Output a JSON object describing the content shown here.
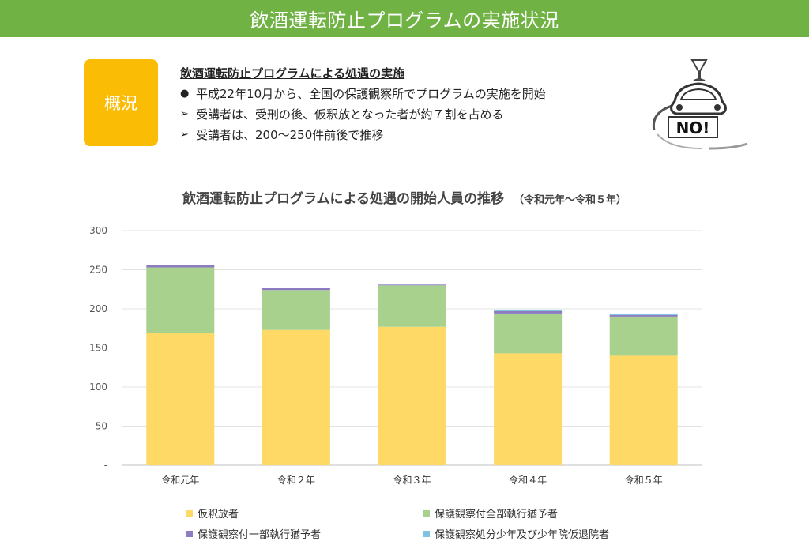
{
  "header": {
    "title": "飲酒運転防止プログラムの実施状況"
  },
  "summary": {
    "box_label": "概況",
    "heading": "飲酒運転防止プログラムによる処遇の実施",
    "bullets": [
      {
        "mark": "●",
        "text": "平成22年10月から、全国の保護観察所でプログラムの実施を開始"
      },
      {
        "mark": "➢",
        "text": "受講者は、受刑の後、仮釈放となった者が約７割を占める"
      },
      {
        "mark": "➢",
        "text": "受講者は、200～250件前後で推移"
      }
    ]
  },
  "logo": {
    "text": "NO!",
    "icon": "no-drunk-driving-icon"
  },
  "chart_data": {
    "type": "bar",
    "stacked": true,
    "title": "飲酒運転防止プログラムによる処遇の開始人員の推移",
    "subtitle": "（令和元年～令和５年）",
    "categories": [
      "令和元年",
      "令和２年",
      "令和３年",
      "令和４年",
      "令和５年"
    ],
    "ylim": [
      0,
      300
    ],
    "yticks": [
      0,
      50,
      100,
      150,
      200,
      250,
      300
    ],
    "ytick_labels": [
      "-",
      "50",
      "100",
      "150",
      "200",
      "250",
      "300"
    ],
    "grid": true,
    "legend_position": "bottom",
    "series": [
      {
        "name": "仮釈放者",
        "color": "#ffd966",
        "values": [
          169,
          173,
          177,
          143,
          140
        ]
      },
      {
        "name": "保護観察付全部執行猶予者",
        "color": "#a9d18e",
        "values": [
          84,
          51,
          53,
          51,
          50
        ]
      },
      {
        "name": "保護観察付一部執行猶予者",
        "color": "#8e7cc3",
        "values": [
          3,
          3,
          1,
          3,
          2
        ]
      },
      {
        "name": "保護観察処分少年及び少年院仮退院者",
        "color": "#7fc3e0",
        "values": [
          0,
          0,
          0,
          2,
          2
        ]
      }
    ]
  }
}
